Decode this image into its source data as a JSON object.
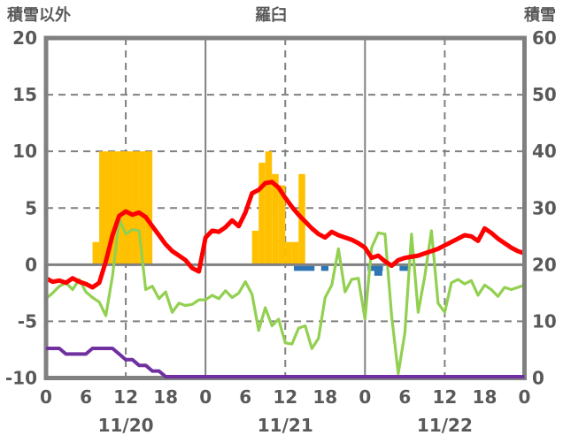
{
  "chart_data": {
    "type": "line",
    "title": "羅臼",
    "left_axis_label": "積雪以外",
    "right_axis_label": "積雪",
    "left_axis": {
      "min": -10,
      "max": 20,
      "ticks": [
        20,
        15,
        10,
        5,
        0,
        -5,
        -10
      ]
    },
    "right_axis": {
      "min": 0,
      "max": 60,
      "ticks": [
        60,
        50,
        40,
        30,
        20,
        10,
        0
      ]
    },
    "x_axis": {
      "hours_span": 72,
      "tick_interval_hours": 6,
      "hour_tick_labels": [
        "0",
        "6",
        "12",
        "18",
        "0",
        "6",
        "12",
        "18",
        "0",
        "6",
        "12",
        "18",
        "0"
      ],
      "date_labels": [
        "11/20",
        "11/21",
        "11/22"
      ],
      "date_center_hours": [
        12,
        36,
        60
      ]
    },
    "grid": {
      "h_dashed_values": [
        15,
        10,
        5,
        -5
      ],
      "v_dashed_hours": [
        12,
        36,
        60
      ],
      "v_solid_hours": [
        24,
        48
      ],
      "zero_line_value": 0,
      "grid_on": true
    },
    "colors": {
      "precipitation_bar": "#FFC000",
      "temperature_line": "#FF0000",
      "wind_line": "#92D050",
      "snow_depth_line": "#7030A0",
      "snow_mark": "#2E75B6",
      "grid": "#808080",
      "text": "#595959"
    },
    "series": {
      "precipitation_bars": {
        "name": "precipitation",
        "axis": "left",
        "hour_value_pairs": [
          [
            7,
            2
          ],
          [
            8,
            10
          ],
          [
            9,
            10
          ],
          [
            10,
            10
          ],
          [
            11,
            10
          ],
          [
            12,
            10
          ],
          [
            13,
            10
          ],
          [
            14,
            10
          ],
          [
            15,
            10
          ],
          [
            31,
            3
          ],
          [
            32,
            9
          ],
          [
            33,
            10
          ],
          [
            34,
            8
          ],
          [
            35,
            7
          ],
          [
            36,
            2
          ],
          [
            37,
            2
          ],
          [
            38,
            8
          ]
        ]
      },
      "temperature": {
        "name": "temperature",
        "axis": "left",
        "values": [
          -1.2,
          -1.5,
          -1.4,
          -1.6,
          -1.2,
          -1.5,
          -1.7,
          -2.0,
          -1.6,
          0.3,
          2.6,
          4.3,
          4.7,
          4.4,
          4.6,
          4.2,
          3.4,
          2.6,
          1.8,
          1.2,
          0.8,
          0.4,
          -0.3,
          -0.6,
          2.4,
          3.0,
          2.9,
          3.3,
          3.9,
          3.4,
          4.6,
          6.3,
          6.6,
          7.2,
          7.3,
          6.8,
          5.9,
          5.1,
          4.4,
          3.8,
          3.2,
          2.7,
          2.4,
          2.9,
          2.6,
          2.4,
          2.2,
          1.9,
          1.5,
          0.6,
          0.8,
          0.3,
          -0.1,
          0.4,
          0.6,
          0.7,
          0.8,
          1.0,
          1.2,
          1.4,
          1.7,
          2.0,
          2.3,
          2.6,
          2.5,
          2.1,
          3.2,
          2.8,
          2.3,
          1.9,
          1.5,
          1.2,
          1.0
        ]
      },
      "wind": {
        "name": "wind",
        "axis": "left",
        "values": [
          -3.0,
          -2.5,
          -1.9,
          -1.6,
          -2.2,
          -1.3,
          -2.4,
          -2.9,
          -3.3,
          -4.5,
          -1.0,
          4.0,
          2.7,
          3.1,
          3.0,
          -2.2,
          -1.9,
          -3.0,
          -2.4,
          -4.2,
          -3.4,
          -3.6,
          -3.5,
          -3.1,
          -3.1,
          -2.7,
          -3.0,
          -2.3,
          -2.9,
          -2.5,
          -1.5,
          -2.6,
          -5.8,
          -3.8,
          -5.4,
          -4.8,
          -6.9,
          -7.0,
          -5.6,
          -5.4,
          -7.4,
          -6.5,
          -2.9,
          -1.8,
          1.4,
          -2.4,
          -1.3,
          -1.2,
          -4.8,
          1.5,
          2.8,
          2.7,
          -4.5,
          -9.6,
          -6.0,
          2.7,
          -4.2,
          -1.0,
          3.0,
          -3.4,
          -4.2,
          -1.6,
          -1.3,
          -1.7,
          -1.4,
          -2.7,
          -1.8,
          -2.2,
          -2.8,
          -2.0,
          -2.2,
          -2.0,
          -1.8
        ]
      },
      "snow_depth_cm": {
        "name": "snow-depth",
        "axis": "right",
        "values": [
          5,
          5,
          5,
          4,
          4,
          4,
          4,
          5,
          5,
          5,
          5,
          4,
          3,
          3,
          2,
          2,
          1,
          1,
          0,
          0,
          0,
          0,
          0,
          0,
          0,
          0,
          0,
          0,
          0,
          0,
          0,
          0,
          0,
          0,
          0,
          0,
          0,
          0,
          0,
          0,
          0,
          0,
          0,
          0,
          0,
          0,
          0,
          0,
          0,
          0,
          0,
          0,
          0,
          0,
          0,
          0,
          0,
          0,
          0,
          0,
          0,
          0,
          0,
          0,
          0,
          0,
          0,
          0,
          0,
          0,
          0,
          0,
          0
        ]
      },
      "snow_marks": {
        "name": "snow-marks",
        "segments_hours": [
          [
            37.3,
            40.4
          ],
          [
            41.4,
            42.5
          ],
          [
            48.4,
            50.7
          ],
          [
            53.2,
            54.6
          ]
        ],
        "deep_segments_hours": [
          [
            49.4,
            50.6
          ]
        ]
      }
    }
  }
}
